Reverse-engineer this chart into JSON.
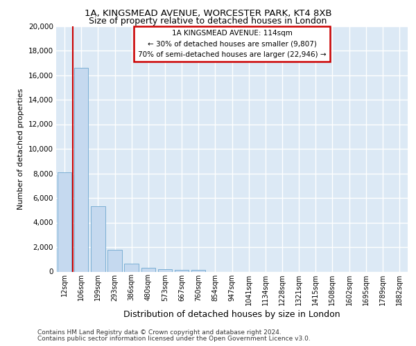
{
  "title_line1": "1A, KINGSMEAD AVENUE, WORCESTER PARK, KT4 8XB",
  "title_line2": "Size of property relative to detached houses in London",
  "xlabel": "Distribution of detached houses by size in London",
  "ylabel": "Number of detached properties",
  "footer_line1": "Contains HM Land Registry data © Crown copyright and database right 2024.",
  "footer_line2": "Contains public sector information licensed under the Open Government Licence v3.0.",
  "bar_labels": [
    "12sqm",
    "106sqm",
    "199sqm",
    "293sqm",
    "386sqm",
    "480sqm",
    "573sqm",
    "667sqm",
    "760sqm",
    "854sqm",
    "947sqm",
    "1041sqm",
    "1134sqm",
    "1228sqm",
    "1321sqm",
    "1415sqm",
    "1508sqm",
    "1602sqm",
    "1695sqm",
    "1789sqm",
    "1882sqm"
  ],
  "bar_values": [
    8100,
    16600,
    5300,
    1800,
    650,
    330,
    190,
    150,
    130,
    0,
    0,
    0,
    0,
    0,
    0,
    0,
    0,
    0,
    0,
    0,
    0
  ],
  "bar_color": "#c5d9ef",
  "bar_edge_color": "#7bafd4",
  "ylim": [
    0,
    20000
  ],
  "yticks": [
    0,
    2000,
    4000,
    6000,
    8000,
    10000,
    12000,
    14000,
    16000,
    18000,
    20000
  ],
  "red_line_color": "#cc0000",
  "red_line_x": 0.5,
  "annotation_text_line1": "1A KINGSMEAD AVENUE: 114sqm",
  "annotation_text_line2": "← 30% of detached houses are smaller (9,807)",
  "annotation_text_line3": "70% of semi-detached houses are larger (22,946) →",
  "annotation_box_edgecolor": "#cc0000",
  "background_color": "#dce9f5",
  "grid_color": "#ffffff",
  "title_fontsize1": 9.5,
  "title_fontsize2": 9.0,
  "ylabel_fontsize": 8.0,
  "xlabel_fontsize": 9.0,
  "tick_fontsize": 7.5,
  "xtick_fontsize": 7.0,
  "annot_fontsize": 7.5,
  "footer_fontsize": 6.5
}
